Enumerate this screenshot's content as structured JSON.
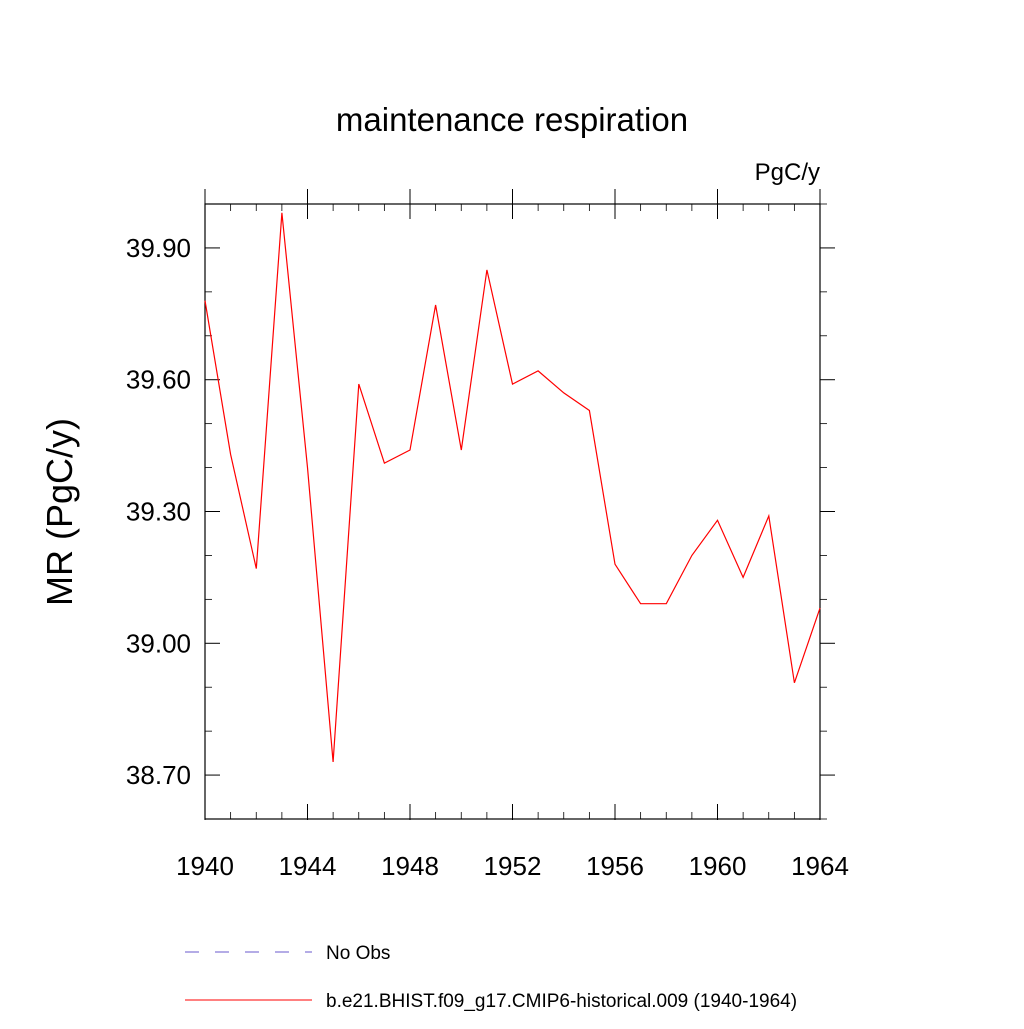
{
  "chart_data": {
    "type": "line",
    "title": "maintenance respiration",
    "units_label": "PgC/y",
    "ylabel": "MR  (PgC/y)",
    "xlabel": "",
    "xlim": [
      1940,
      1964
    ],
    "ylim": [
      38.6,
      40.0
    ],
    "x_ticks": [
      1940,
      1944,
      1948,
      1952,
      1956,
      1960,
      1964
    ],
    "x_tick_labels": [
      "1940",
      "1944",
      "1948",
      "1952",
      "1956",
      "1960",
      "1964"
    ],
    "y_ticks": [
      38.7,
      39.0,
      39.3,
      39.6,
      39.9
    ],
    "y_tick_labels": [
      "38.70",
      "39.00",
      "39.30",
      "39.60",
      "39.90"
    ],
    "grid": false,
    "legend_position": "bottom",
    "series": [
      {
        "name": "No Obs",
        "color": "#6a5acd",
        "dash": "dashed",
        "x": [],
        "values": []
      },
      {
        "name": "b.e21.BHIST.f09_g17.CMIP6-historical.009 (1940-1964)",
        "color": "#ff0000",
        "dash": "solid",
        "x": [
          1940,
          1941,
          1942,
          1943,
          1944,
          1945,
          1946,
          1947,
          1948,
          1949,
          1950,
          1951,
          1952,
          1953,
          1954,
          1955,
          1956,
          1957,
          1958,
          1959,
          1960,
          1961,
          1962,
          1963,
          1964
        ],
        "values": [
          39.78,
          39.43,
          39.17,
          39.98,
          39.4,
          38.73,
          39.59,
          39.41,
          39.44,
          39.77,
          39.44,
          39.85,
          39.59,
          39.62,
          39.57,
          39.53,
          39.18,
          39.09,
          39.09,
          39.2,
          39.28,
          39.15,
          39.29,
          38.91,
          39.08
        ]
      }
    ]
  }
}
